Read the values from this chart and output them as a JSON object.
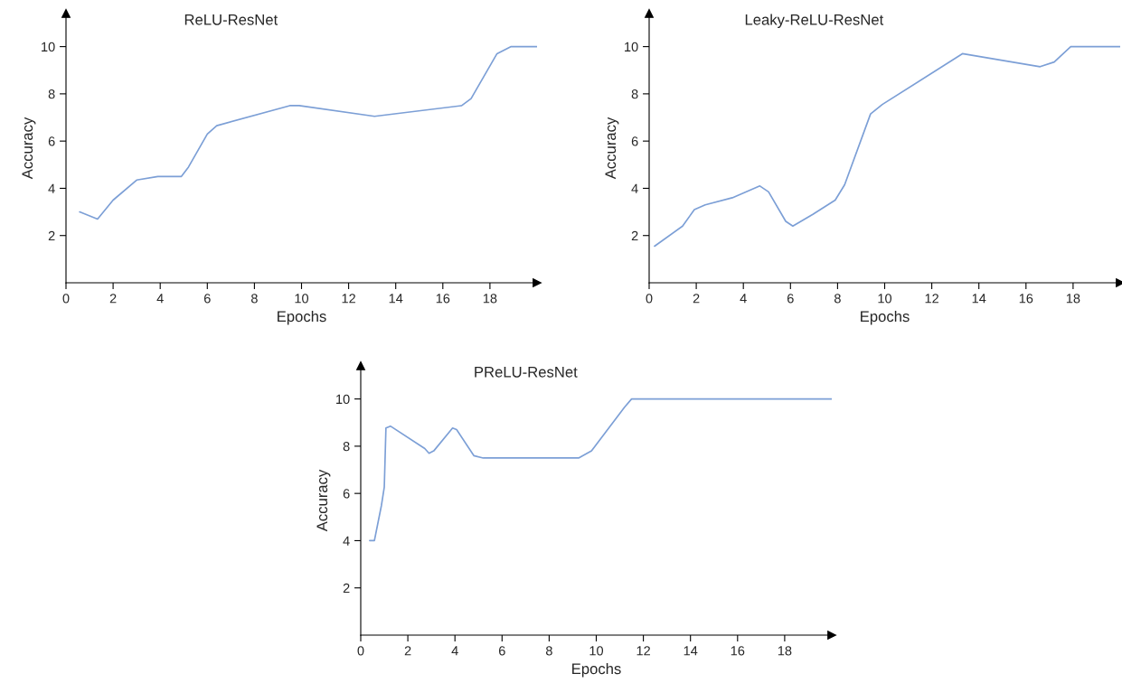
{
  "chart_data": [
    {
      "type": "line",
      "title": "ReLU-ResNet",
      "xlabel": "Epochs",
      "ylabel": "Accuracy",
      "color": "#7c9fd6",
      "x": [
        0.58,
        1.34,
        2.0,
        3.0,
        3.9,
        4.9,
        5.2,
        6.0,
        6.4,
        9.5,
        9.9,
        13.1,
        16.8,
        17.2,
        18.3,
        18.9,
        20
      ],
      "values": [
        3.0,
        2.7,
        3.5,
        4.35,
        4.5,
        4.5,
        4.9,
        6.3,
        6.65,
        7.5,
        7.5,
        7.05,
        7.5,
        7.8,
        9.7,
        10,
        10
      ],
      "xlim": [
        0,
        20
      ],
      "ylim": [
        0,
        11.4
      ],
      "xticks": [
        0,
        2,
        4,
        6,
        8,
        10,
        12,
        14,
        16,
        18
      ],
      "yticks": [
        2,
        4,
        6,
        8,
        10
      ]
    },
    {
      "type": "line",
      "title": "Leaky-ReLU-ResNet",
      "xlabel": "Epochs",
      "ylabel": "Accuracy",
      "color": "#7c9fd6",
      "x": [
        0.23,
        1.42,
        1.92,
        2.38,
        3.53,
        4.7,
        5.07,
        5.8,
        6.1,
        6.95,
        7.9,
        8.3,
        9.4,
        9.9,
        13.3,
        16.6,
        17.2,
        17.9,
        20
      ],
      "values": [
        1.55,
        2.4,
        3.1,
        3.3,
        3.6,
        4.1,
        3.85,
        2.6,
        2.4,
        2.9,
        3.5,
        4.15,
        7.15,
        7.55,
        9.7,
        9.15,
        9.35,
        10,
        10
      ],
      "xlim": [
        0,
        20
      ],
      "ylim": [
        0,
        11.4
      ],
      "xticks": [
        0,
        2,
        4,
        6,
        8,
        10,
        12,
        14,
        16,
        18
      ],
      "yticks": [
        2,
        4,
        6,
        8,
        10
      ]
    },
    {
      "type": "line",
      "title": "PReLU-ResNet",
      "xlabel": "Epochs",
      "ylabel": "Accuracy",
      "color": "#7c9fd6",
      "x": [
        0.38,
        0.58,
        0.88,
        1.0,
        1.07,
        1.26,
        2.72,
        2.9,
        3.1,
        3.9,
        4.07,
        4.8,
        5.2,
        9.25,
        9.8,
        11.2,
        11.5,
        20
      ],
      "values": [
        4.0,
        4.0,
        5.5,
        6.27,
        8.77,
        8.85,
        7.9,
        7.7,
        7.8,
        8.77,
        8.7,
        7.6,
        7.5,
        7.5,
        7.8,
        9.65,
        10,
        10
      ],
      "xlim": [
        0,
        20
      ],
      "ylim": [
        0,
        11.4
      ],
      "xticks": [
        0,
        2,
        4,
        6,
        8,
        10,
        12,
        14,
        16,
        18
      ],
      "yticks": [
        2,
        4,
        6,
        8,
        10
      ]
    }
  ]
}
